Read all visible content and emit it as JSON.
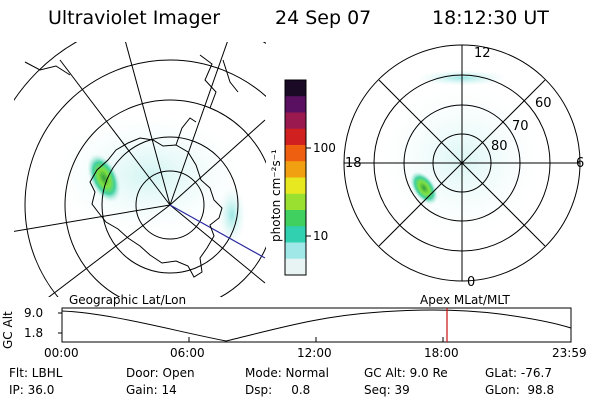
{
  "header": {
    "title": "Ultraviolet Imager",
    "date": "24 Sep 07",
    "time": "18:12:30 UT"
  },
  "colorbar": {
    "unit_label": "photon cm⁻²s⁻¹",
    "ticks": [
      "100",
      "10"
    ],
    "colors": [
      "#1a0a26",
      "#5a1060",
      "#9a1a50",
      "#d02020",
      "#ee6010",
      "#f0a010",
      "#e8e820",
      "#9ae030",
      "#40d060",
      "#30d0b0",
      "#a0e8e8",
      "#e8f4f4"
    ]
  },
  "left_map": {
    "name": "geographic-polar-map"
  },
  "right_map": {
    "ring_labels": [
      "60",
      "70",
      "80"
    ],
    "clock_labels": {
      "top": "12",
      "left": "18",
      "right": "6",
      "bottom": "0"
    }
  },
  "timeline": {
    "left_title": "Geographic Lat/Lon",
    "right_title": "Apex  MLat/MLT",
    "y_label": "GC Alt",
    "y_ticks": [
      "9.0",
      "1.8"
    ],
    "x_ticks": [
      "00:00",
      "06:00",
      "12:00",
      "18:00",
      "23:59"
    ],
    "marker_color": "#cc1111"
  },
  "status": {
    "flt": "Flt: LBHL",
    "ip": "IP: 36.0",
    "door": "Door: Open",
    "gain": "Gain: 14",
    "mode": "Mode: Normal",
    "dsp": "Dsp:     0.8",
    "gc_alt": "GC Alt: 9.0 Re",
    "seq": "Seq: 39",
    "glat": "GLat: -76.7",
    "glon": "GLon:  98.8"
  }
}
